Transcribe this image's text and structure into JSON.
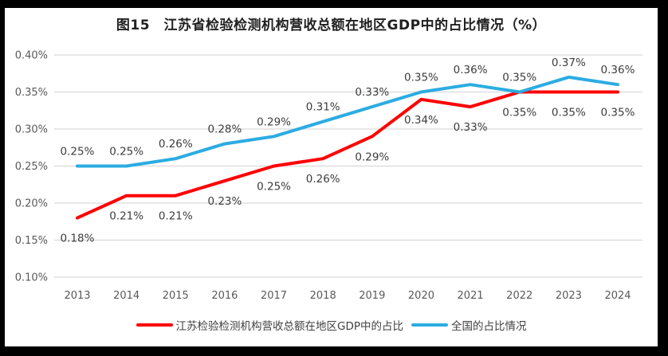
{
  "figure": {
    "title": "图15　江苏省检验检测机构营收总额在地区GDP中的占比情况（%）"
  },
  "chart_data": {
    "type": "line",
    "title": "图15　江苏省检验检测机构营收总额在地区GDP中的占比情况（%）",
    "categories": [
      "2013",
      "2014",
      "2015",
      "2016",
      "2017",
      "2018",
      "2019",
      "2020",
      "2021",
      "2022",
      "2023",
      "2024"
    ],
    "series": [
      {
        "key": "jiangsu",
        "name": "江苏检验检测机构营收总额在地区GDP中的占比",
        "color": "#ff0000",
        "values": [
          0.18,
          0.21,
          0.21,
          0.23,
          0.25,
          0.26,
          0.29,
          0.34,
          0.33,
          0.35,
          0.35,
          0.35
        ],
        "point_labels": [
          "0.18%",
          "0.21%",
          "0.21%",
          "0.23%",
          "0.25%",
          "0.26%",
          "0.29%",
          "0.34%",
          "0.33%",
          "0.35%",
          "0.35%",
          "0.35%"
        ],
        "label_position": "below"
      },
      {
        "key": "national",
        "name": "全国的占比情况",
        "color": "#2bace2",
        "values": [
          0.25,
          0.25,
          0.26,
          0.28,
          0.29,
          0.31,
          0.33,
          0.35,
          0.36,
          0.35,
          0.37,
          0.36
        ],
        "point_labels": [
          "0.25%",
          "0.25%",
          "0.26%",
          "0.28%",
          "0.29%",
          "0.31%",
          "0.33%",
          "0.35%",
          "0.36%",
          "0.35%",
          "0.37%",
          "0.36%"
        ],
        "label_position": "above"
      }
    ],
    "y_axis": {
      "unit": "%",
      "min": 0.1,
      "max": 0.4,
      "ticks": [
        {
          "label": "0.40%",
          "value": 0.4
        },
        {
          "label": "0.35%",
          "value": 0.35
        },
        {
          "label": "0.30%",
          "value": 0.3
        },
        {
          "label": "0.25%",
          "value": 0.25
        },
        {
          "label": "0.20%",
          "value": 0.2
        },
        {
          "label": "0.15%",
          "value": 0.15
        },
        {
          "label": "0.10%",
          "value": 0.1
        }
      ]
    },
    "grid": true,
    "legend_position": "bottom"
  },
  "style": {
    "series_red": "#ff0000",
    "series_blue": "#2bace2",
    "gridline": "#d9d9d9",
    "axis_text": "#595959",
    "data_label_text": "#3c3c3c",
    "title_text": "#1f1f1f",
    "frame_border": "#000000",
    "background": "#ffffff"
  }
}
